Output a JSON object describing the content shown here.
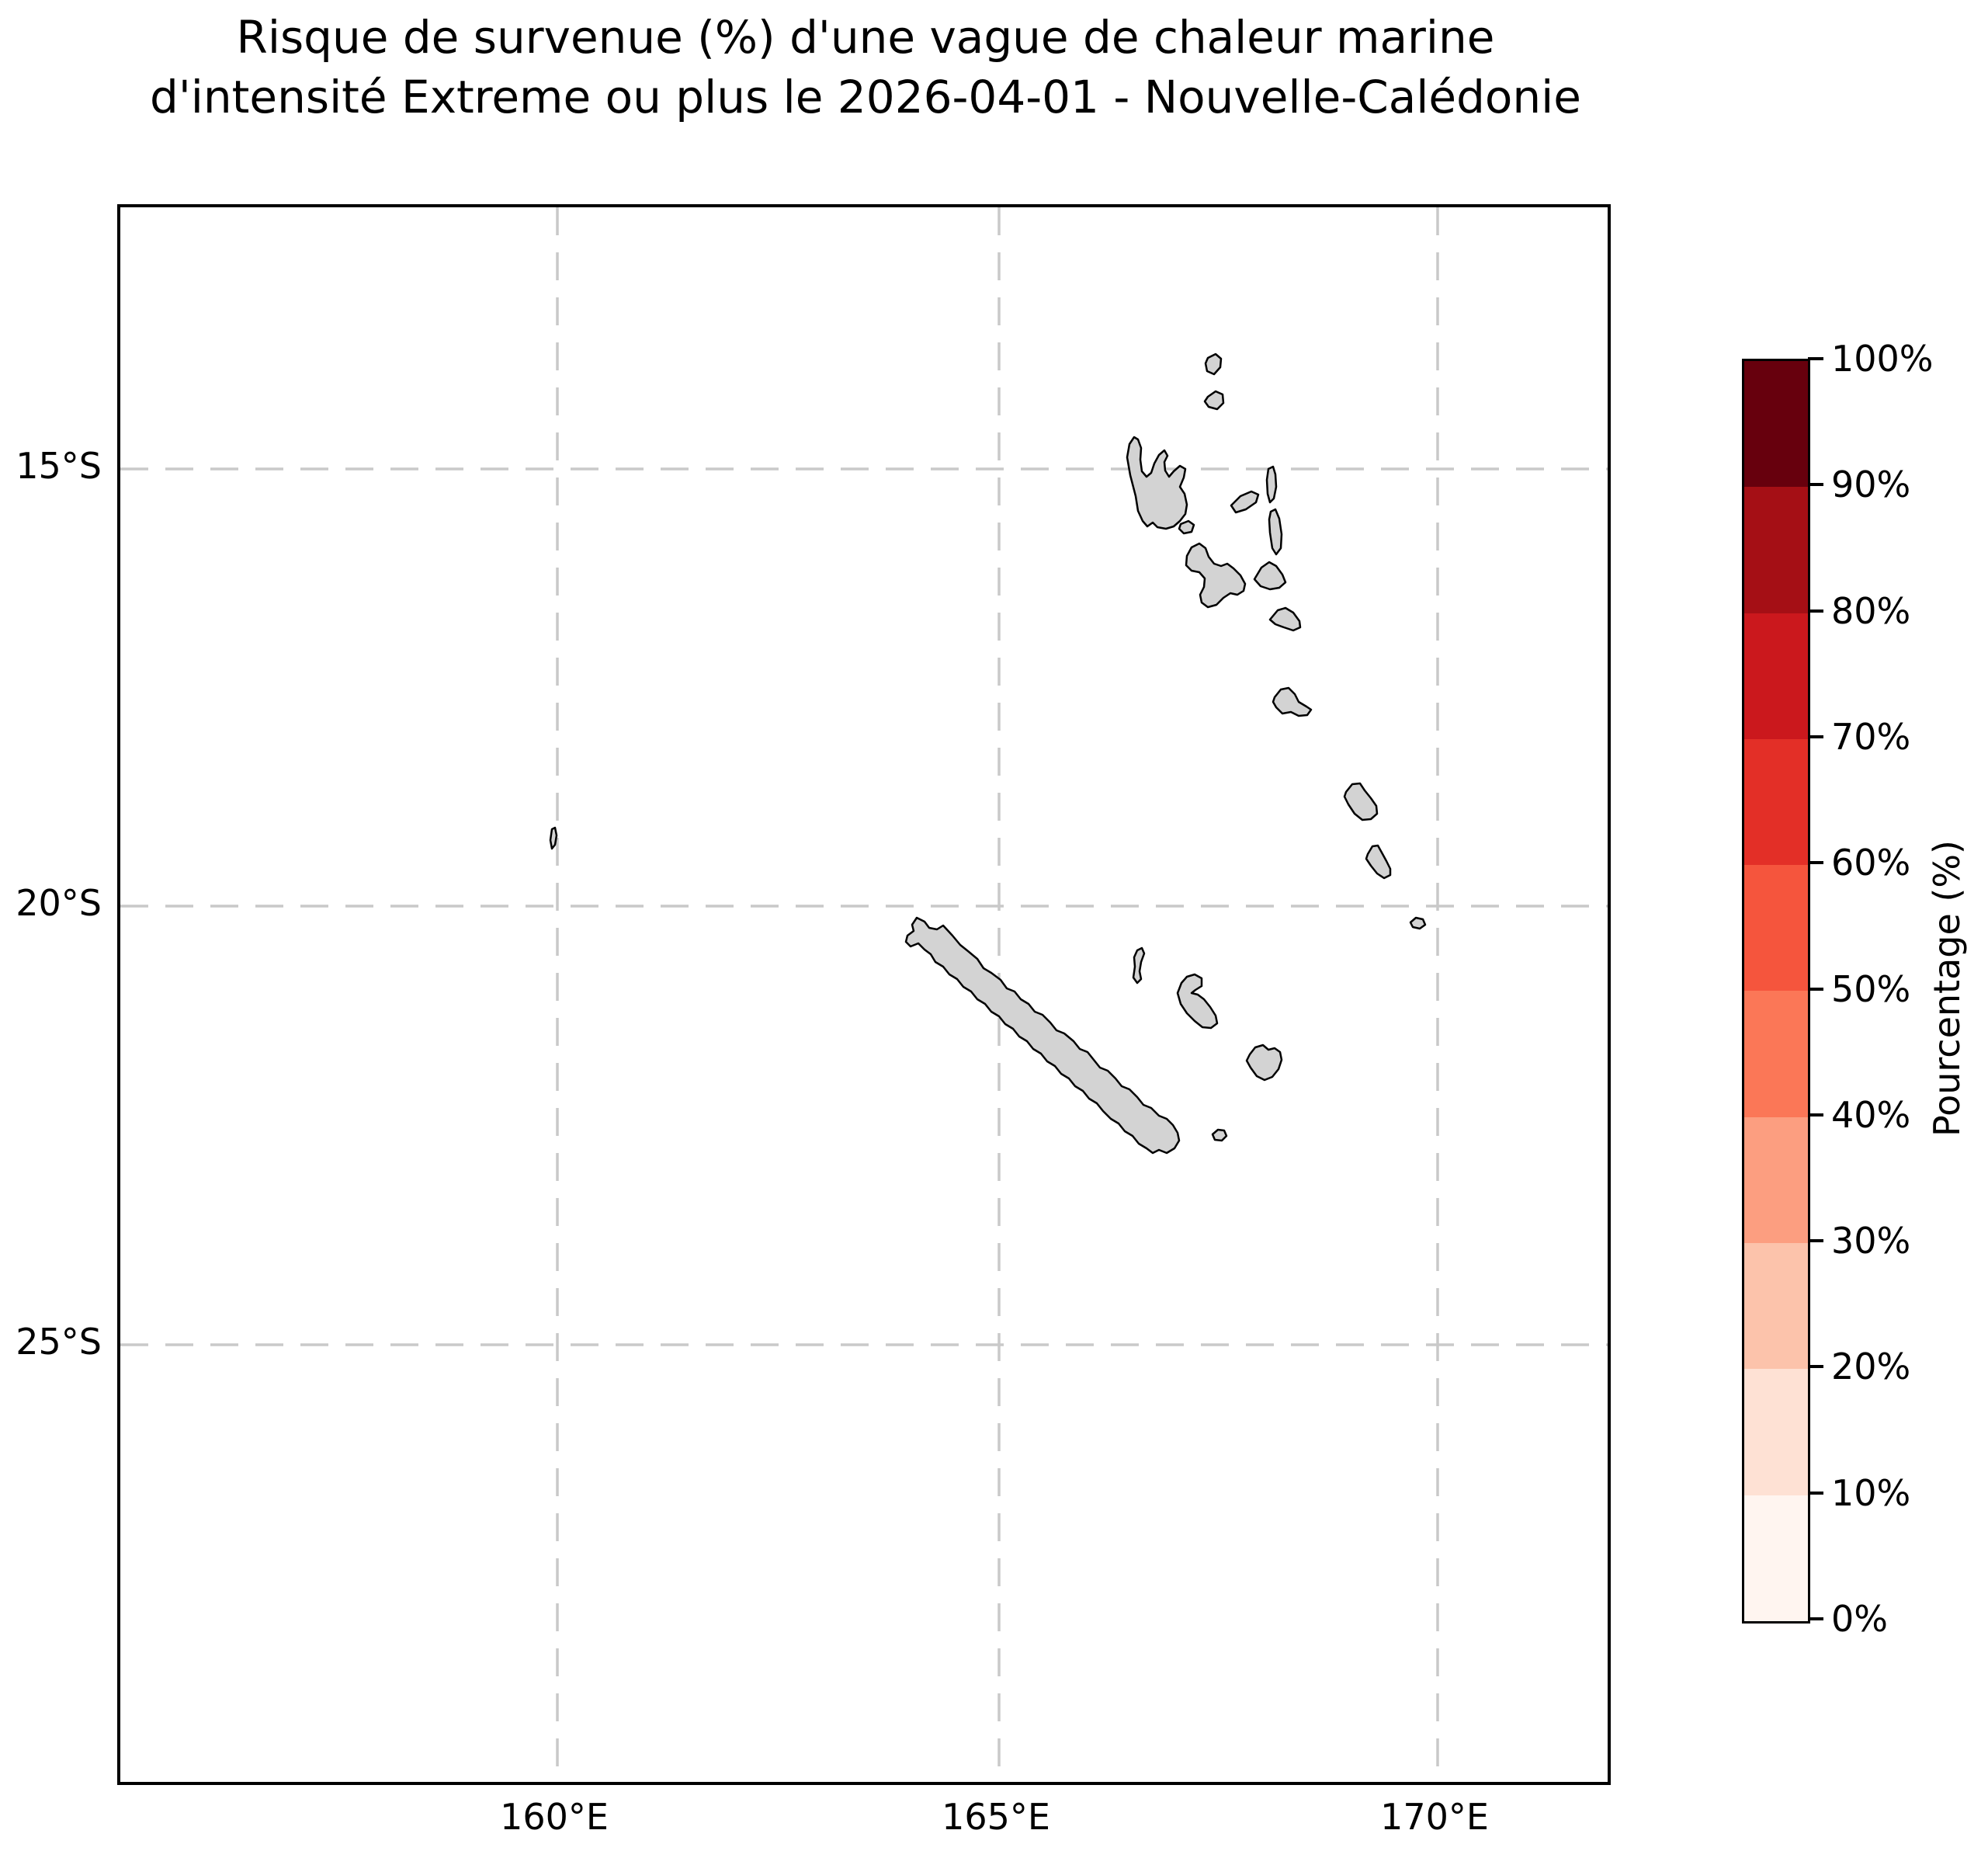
{
  "figure": {
    "title_line1": "Risque de survenue (%) d'une vague de chaleur marine",
    "title_line2": "d'intensité Extreme ou plus le 2026-04-01 - Nouvelle-Calédonie"
  },
  "map": {
    "y_tick_labels": [
      "15°S",
      "20°S",
      "25°S"
    ],
    "x_tick_labels": [
      "160°E",
      "165°E",
      "170°E"
    ],
    "land_color": "#d3d3d3",
    "coast_color": "#000000",
    "grid_color": "#c9c9c9",
    "ocean_color": "#ffffff"
  },
  "colorbar": {
    "label": "Pourcentage (%)",
    "tick_labels_top_down": [
      "100%",
      "90%",
      "80%",
      "70%",
      "60%",
      "50%",
      "40%",
      "30%",
      "20%",
      "10%",
      "0%"
    ],
    "segment_colors_top_down": [
      "#67000d",
      "#a50f15",
      "#cb181d",
      "#e32f27",
      "#f5553d",
      "#fb7757",
      "#fc9e80",
      "#fcc3ab",
      "#fee1d4",
      "#fff5f0"
    ]
  },
  "chart_data": {
    "type": "heatmap",
    "title": "Risque de survenue (%) d'une vague de chaleur marine d'intensité Extreme ou plus le 2026-04-01 - Nouvelle-Calédonie",
    "date_shown": "2026-04-01",
    "region_shown": "Nouvelle-Calédonie and Vanuatu archipelago",
    "x_axis": {
      "tick_labels": [
        "160°E",
        "165°E",
        "170°E"
      ],
      "approx_range_deg_east": [
        155,
        172
      ]
    },
    "y_axis": {
      "tick_labels": [
        "15°S",
        "20°S",
        "25°S"
      ],
      "approx_range_deg_south": [
        12,
        30
      ]
    },
    "grid": "dashed gray lat/lon graticule at 5° spacing",
    "colorbar": {
      "label": "Pourcentage (%)",
      "ticks_percent": [
        0,
        10,
        20,
        30,
        40,
        50,
        60,
        70,
        80,
        90,
        100
      ],
      "bin_colors_low_to_high": [
        "#fff5f0",
        "#fee1d4",
        "#fcc3ab",
        "#fc9e80",
        "#fb7757",
        "#f5553d",
        "#e32f27",
        "#cb181d",
        "#a50f15",
        "#67000d"
      ],
      "bins": "10 discrete 10% bins (Reds scale)"
    },
    "values": "No shaded risk cells visible: the mapped area is entirely white (≈0% risk). Only land masses are drawn, in light gray with black coastlines."
  }
}
